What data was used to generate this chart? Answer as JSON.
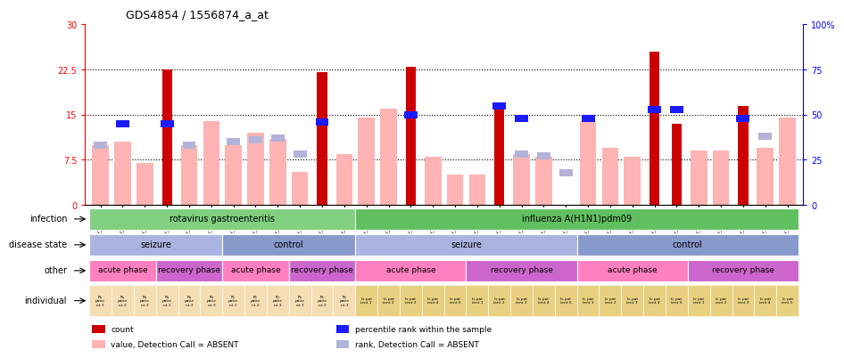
{
  "title": "GDS4854 / 1556874_a_at",
  "samples": [
    "GSM1224909",
    "GSM1224911",
    "GSM1224913",
    "GSM1224910",
    "GSM1224912",
    "GSM1224914",
    "GSM1224903",
    "GSM1224905",
    "GSM1224907",
    "GSM1224904",
    "GSM1224906",
    "GSM1224908",
    "GSM1224893",
    "GSM1224895",
    "GSM1224897",
    "GSM1224899",
    "GSM1224901",
    "GSM1224894",
    "GSM1224896",
    "GSM1224898",
    "GSM1224900",
    "GSM1224902",
    "GSM1224883",
    "GSM1224885",
    "GSM1224887",
    "GSM1224889",
    "GSM1224891",
    "GSM1224884",
    "GSM1224886",
    "GSM1224888",
    "GSM1224890",
    "GSM1224892"
  ],
  "count_values": [
    null,
    null,
    null,
    22.5,
    null,
    null,
    null,
    null,
    null,
    null,
    22.0,
    null,
    null,
    null,
    23.0,
    null,
    null,
    null,
    16.0,
    null,
    null,
    null,
    null,
    null,
    null,
    25.5,
    13.5,
    null,
    null,
    16.5,
    null,
    null
  ],
  "rank_values": [
    null,
    45,
    null,
    45,
    null,
    null,
    null,
    null,
    null,
    null,
    46,
    null,
    null,
    null,
    50,
    null,
    null,
    null,
    55,
    48,
    null,
    null,
    48,
    null,
    null,
    53,
    53,
    null,
    null,
    48,
    null,
    null
  ],
  "absent_count": [
    10.0,
    10.5,
    7.0,
    null,
    10.0,
    14.0,
    10.0,
    12.0,
    11.0,
    5.5,
    null,
    8.5,
    14.5,
    16.0,
    null,
    8.0,
    5.0,
    5.0,
    null,
    8.5,
    8.0,
    null,
    14.0,
    9.5,
    8.0,
    null,
    null,
    9.0,
    9.0,
    null,
    9.5,
    14.5
  ],
  "absent_rank": [
    33,
    null,
    null,
    null,
    33,
    null,
    35,
    36,
    37,
    28,
    null,
    null,
    null,
    null,
    null,
    null,
    null,
    null,
    null,
    28,
    27,
    18,
    null,
    null,
    null,
    null,
    null,
    null,
    null,
    null,
    38,
    null
  ],
  "ylim_left": [
    0,
    30
  ],
  "ylim_right": [
    0,
    100
  ],
  "yticks_left": [
    0,
    7.5,
    15,
    22.5,
    30
  ],
  "yticks_right": [
    0,
    25,
    50,
    75,
    100
  ],
  "ytick_labels_left": [
    "0",
    "7.5",
    "15",
    "22.5",
    "30"
  ],
  "ytick_labels_right": [
    "0",
    "25",
    "50",
    "75",
    "100%"
  ],
  "color_count": "#cc0000",
  "color_rank": "#1a1aff",
  "color_absent_count": "#ffb3b3",
  "color_absent_rank": "#b3b3d9",
  "infection_groups": [
    {
      "label": "rotavirus gastroenteritis",
      "start": 0,
      "end": 11,
      "color": "#80d080"
    },
    {
      "label": "influenza A(H1N1)pdm09",
      "start": 12,
      "end": 31,
      "color": "#60c060"
    }
  ],
  "disease_groups": [
    {
      "label": "seizure",
      "start": 0,
      "end": 5,
      "color": "#aab4e0"
    },
    {
      "label": "control",
      "start": 6,
      "end": 11,
      "color": "#8899cc"
    },
    {
      "label": "seizure",
      "start": 12,
      "end": 21,
      "color": "#aab4e0"
    },
    {
      "label": "control",
      "start": 22,
      "end": 31,
      "color": "#8899cc"
    }
  ],
  "other_groups": [
    {
      "label": "acute phase",
      "start": 0,
      "end": 2,
      "color": "#ff80c0"
    },
    {
      "label": "recovery phase",
      "start": 3,
      "end": 5,
      "color": "#cc66cc"
    },
    {
      "label": "acute phase",
      "start": 6,
      "end": 8,
      "color": "#ff80c0"
    },
    {
      "label": "recovery phase",
      "start": 9,
      "end": 11,
      "color": "#cc66cc"
    },
    {
      "label": "acute phase",
      "start": 12,
      "end": 16,
      "color": "#ff80c0"
    },
    {
      "label": "recovery phase",
      "start": 17,
      "end": 21,
      "color": "#cc66cc"
    },
    {
      "label": "acute phase",
      "start": 22,
      "end": 26,
      "color": "#ff80c0"
    },
    {
      "label": "recovery phase",
      "start": 27,
      "end": 31,
      "color": "#cc66cc"
    }
  ],
  "ind_labels": [
    "Rs\npatie\nnt 1",
    "Rs\npatie\nnt 2",
    "Rs\npatie\nnt 3",
    "Rs\npatie\nnt 1",
    "Rs\npatie\nnt 2",
    "Rs\npatie\nnt 3",
    "Rc\npatie\nnt 1",
    "Rc\npatie\nnt 2",
    "Rc\npatie\nnt 3",
    "Rc\npatie\nnt 1",
    "Rc\npatie\nnt 2",
    "Rc\npatie\nnt 3",
    "Is pat\nient 1",
    "Is pat\nient 2",
    "Is pat\nient 3",
    "Is pat\nient 4",
    "Is pat\nient 5",
    "Is pat\nient 1",
    "Is pat\nient 2",
    "Is pat\nient 3",
    "Is pat\nient 4",
    "Is pat\nient 5",
    "Ic pat\nient 1",
    "Ic pat\nient 2",
    "Ic pat\nient 3",
    "Ic pat\nient 4",
    "Ic pat\nient 5",
    "Ic pat\nient 1",
    "Ic pat\nient 2",
    "Ic pat\nient 3",
    "Ic pat\nient 4",
    "Ic pat\nient 5"
  ],
  "ind_colors": [
    "#f5deb3",
    "#f5deb3",
    "#f5deb3",
    "#f5deb3",
    "#f5deb3",
    "#f5deb3",
    "#f5deb3",
    "#f5deb3",
    "#f5deb3",
    "#f5deb3",
    "#f5deb3",
    "#f5deb3",
    "#e8d080",
    "#e8d080",
    "#e8d080",
    "#e8d080",
    "#e8d080",
    "#e8d080",
    "#e8d080",
    "#e8d080",
    "#e8d080",
    "#e8d080",
    "#e8d080",
    "#e8d080",
    "#e8d080",
    "#e8d080",
    "#e8d080",
    "#e8d080",
    "#e8d080",
    "#e8d080",
    "#e8d080",
    "#e8d080"
  ],
  "row_labels": [
    "infection",
    "disease state",
    "other",
    "individual"
  ],
  "legend_items": [
    {
      "label": "count",
      "color": "#cc0000"
    },
    {
      "label": "percentile rank within the sample",
      "color": "#1a1aff"
    },
    {
      "label": "value, Detection Call = ABSENT",
      "color": "#ffb3b3"
    },
    {
      "label": "rank, Detection Call = ABSENT",
      "color": "#b3b3d9"
    }
  ]
}
